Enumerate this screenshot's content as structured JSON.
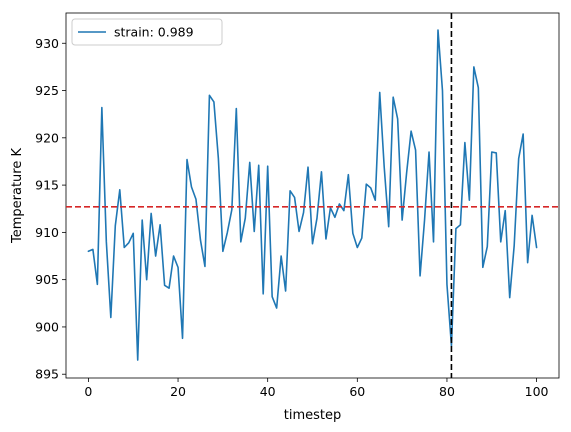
{
  "chart_data": {
    "type": "line",
    "xlabel": "timestep",
    "ylabel": "Temperature K",
    "xlim": [
      -5,
      105
    ],
    "ylim": [
      894.6,
      933.2
    ],
    "xticks": [
      0,
      20,
      40,
      60,
      80,
      100
    ],
    "yticks": [
      895,
      900,
      905,
      910,
      915,
      920,
      925,
      930
    ],
    "grid": false,
    "legend_position": "top-left",
    "series": [
      {
        "name": "strain: 0.989",
        "color": "#1f77b4",
        "x": [
          0,
          1,
          2,
          3,
          4,
          5,
          6,
          7,
          8,
          9,
          10,
          11,
          12,
          13,
          14,
          15,
          16,
          17,
          18,
          19,
          20,
          21,
          22,
          23,
          24,
          25,
          26,
          27,
          28,
          29,
          30,
          31,
          32,
          33,
          34,
          35,
          36,
          37,
          38,
          39,
          40,
          41,
          42,
          43,
          44,
          45,
          46,
          47,
          48,
          49,
          50,
          51,
          52,
          53,
          54,
          55,
          56,
          57,
          58,
          59,
          60,
          61,
          62,
          63,
          64,
          65,
          66,
          67,
          68,
          69,
          70,
          71,
          72,
          73,
          74,
          75,
          76,
          77,
          78,
          79,
          80,
          81,
          82,
          83,
          84,
          85,
          86,
          87,
          88,
          89,
          90,
          91,
          92,
          93,
          94,
          95,
          96,
          97,
          98,
          99,
          100
        ],
        "values": [
          908.0,
          908.2,
          904.5,
          923.2,
          909.0,
          901.0,
          910.7,
          914.5,
          908.4,
          908.9,
          909.9,
          896.5,
          911.3,
          905.0,
          912.0,
          907.5,
          910.8,
          904.4,
          904.1,
          907.5,
          906.3,
          898.8,
          917.7,
          914.8,
          913.5,
          909.2,
          906.4,
          924.5,
          923.8,
          917.8,
          908.0,
          910.0,
          912.4,
          923.1,
          909.0,
          911.5,
          917.4,
          910.1,
          917.1,
          903.5,
          917.0,
          903.2,
          902.0,
          907.5,
          903.8,
          914.4,
          913.7,
          910.1,
          912.1,
          916.9,
          908.8,
          911.5,
          916.4,
          909.3,
          912.6,
          911.6,
          913.0,
          912.3,
          916.1,
          909.9,
          908.4,
          909.4,
          915.1,
          914.7,
          913.4,
          924.8,
          916.9,
          910.6,
          924.3,
          922.0,
          911.3,
          916.3,
          920.7,
          918.7,
          905.4,
          911.3,
          918.5,
          909.0,
          931.4,
          925.0,
          904.5,
          898.0,
          910.4,
          910.8,
          919.5,
          913.4,
          927.5,
          925.3,
          906.3,
          908.5,
          918.5,
          918.4,
          909.0,
          912.3,
          903.1,
          908.6,
          917.8,
          920.4,
          906.8,
          911.8,
          908.4
        ]
      }
    ],
    "reference_lines": [
      {
        "orientation": "horizontal",
        "value": 912.7,
        "color": "#d62728",
        "style": "dashed"
      },
      {
        "orientation": "vertical",
        "value": 81,
        "color": "#000000",
        "style": "dashed"
      }
    ]
  }
}
